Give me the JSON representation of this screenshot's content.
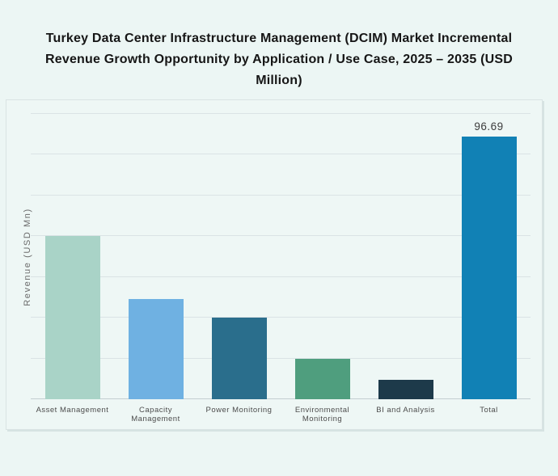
{
  "title": {
    "text": "Turkey Data Center Infrastructure Management (DCIM) Market Incremental Revenue Growth Opportunity by Application / Use Case, 2025 – 2035 (USD Million)",
    "lines": [
      "Turkey Data Center Infrastructure Management (DCIM) Market Incremental",
      "Revenue Growth Opportunity by Application / Use Case, 2025 – 2035 (USD",
      "Million)"
    ]
  },
  "chart_data": {
    "type": "bar",
    "title": "Turkey Data Center Infrastructure Management (DCIM) Market Incremental Revenue Growth Opportunity by Application / Use Case, 2025 – 2035 (USD Million)",
    "xlabel": "",
    "ylabel": "Revenue (USD Mn)",
    "categories": [
      "Asset Management",
      "Capacity Management",
      "Power Monitoring",
      "Environmental Monitoring",
      "BI and Analysis",
      "Total"
    ],
    "values": [
      60,
      37,
      30,
      15,
      7,
      96.69
    ],
    "value_labels": [
      "",
      "",
      "",
      "",
      "",
      "96.69"
    ],
    "colors": [
      "#a9d3c7",
      "#6fb1e2",
      "#2a6e8c",
      "#4f9e7e",
      "#1d3a4a",
      "#1181b5"
    ],
    "ylim": [
      0,
      105
    ],
    "gridline_count": 7,
    "grid": true,
    "legend": false,
    "y_tick_labels_shown": false
  },
  "colors": {
    "page_background": "#ecf6f4",
    "panel_background": "#eef7f5",
    "panel_border": "#d9e3e3",
    "gridline": "#dae3e5",
    "baseline": "#c3ced1",
    "title_text": "#161616",
    "axis_label_text": "#6b6b6b",
    "tick_label_text": "#4c4c4c",
    "value_label_text": "#3c3c3c"
  }
}
